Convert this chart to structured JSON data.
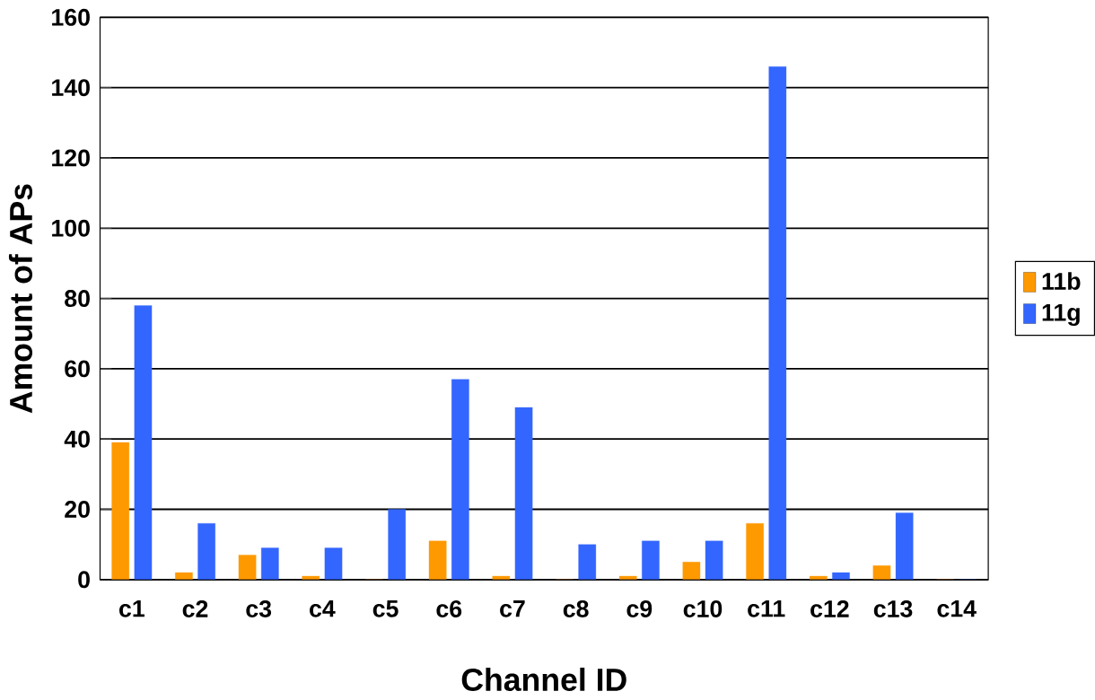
{
  "chart_data": {
    "type": "bar",
    "xlabel": "Channel ID",
    "ylabel": "Amount of APs",
    "categories": [
      "c1",
      "c2",
      "c3",
      "c4",
      "c5",
      "c6",
      "c7",
      "c8",
      "c9",
      "c10",
      "c11",
      "c12",
      "c13",
      "c14"
    ],
    "series": [
      {
        "name": "11b",
        "color": "#ff9900",
        "values": [
          39,
          2,
          7,
          1,
          0,
          11,
          1,
          0,
          1,
          5,
          16,
          1,
          4,
          0
        ]
      },
      {
        "name": "11g",
        "color": "#3366ff",
        "values": [
          78,
          16,
          9,
          9,
          20,
          57,
          49,
          10,
          11,
          11,
          146,
          2,
          19,
          0
        ]
      }
    ],
    "ylim": [
      0,
      160
    ],
    "yticks": [
      0,
      20,
      40,
      60,
      80,
      100,
      120,
      140,
      160
    ],
    "grid": "y",
    "legend": "right"
  }
}
